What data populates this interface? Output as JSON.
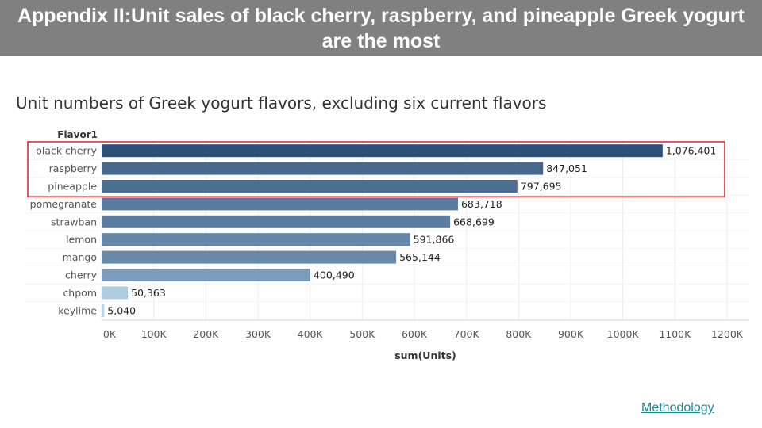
{
  "header": {
    "title": "Appendix II:Unit sales of black cherry, raspberry, and pineapple Greek yogurt are the most"
  },
  "colors": {
    "banner": "#808080",
    "highlight_box": "#d9232d",
    "link": "#1a8a9b"
  },
  "chart_data": {
    "type": "bar",
    "orientation": "horizontal",
    "title": "Unit numbers of Greek yogurt flavors, excluding six current flavors",
    "category_header": "Flavor1",
    "xlabel": "sum(Units)",
    "categories": [
      "black cherry",
      "raspberry",
      "pineapple",
      "pomegranate",
      "strawban",
      "lemon",
      "mango",
      "cherry",
      "chpom",
      "keylime"
    ],
    "values": [
      1076401,
      847051,
      797695,
      683718,
      668699,
      591866,
      565144,
      400490,
      50363,
      5040
    ],
    "value_labels": [
      "1,076,401",
      "847,051",
      "797,695",
      "683,718",
      "668,699",
      "591,866",
      "565,144",
      "400,490",
      "50,363",
      "5,040"
    ],
    "xlim": [
      0,
      1200000
    ],
    "ticks": [
      0,
      100000,
      200000,
      300000,
      400000,
      500000,
      600000,
      700000,
      800000,
      900000,
      1000000,
      1100000,
      1200000
    ],
    "tick_labels": [
      "0K",
      "100K",
      "200K",
      "300K",
      "400K",
      "500K",
      "600K",
      "700K",
      "800K",
      "900K",
      "1000K",
      "1100K",
      "1200K"
    ],
    "grid": "vertical",
    "highlighted": [
      "black cherry",
      "raspberry",
      "pineapple"
    ],
    "color_scale": [
      "#b8d7ec",
      "#2e5079"
    ]
  },
  "footer": {
    "link_label": "Methodology"
  }
}
